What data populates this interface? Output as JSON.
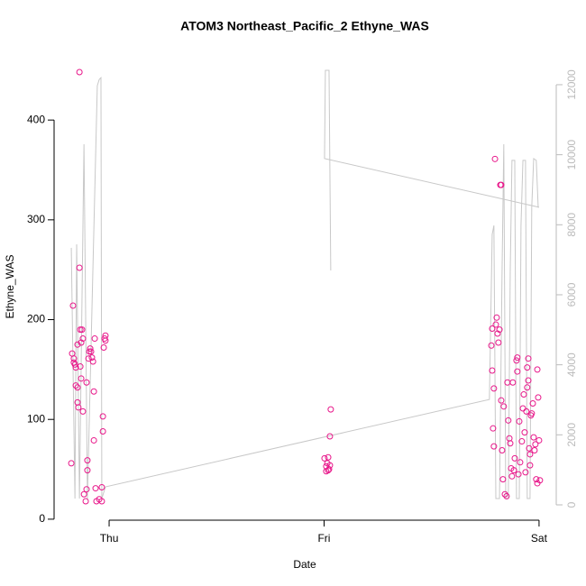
{
  "chart_data": {
    "type": "scatter",
    "title": "ATOM3 Northeast_Pacific_2 Ethyne_WAS",
    "xlabel": "Date",
    "ylabel": "Ethyne_WAS",
    "xlim": [
      -0.256,
      2.08
    ],
    "xticks": [
      {
        "value": 0,
        "label": "Thu"
      },
      {
        "value": 1,
        "label": "Fri"
      },
      {
        "value": 2,
        "label": "Sat"
      }
    ],
    "ylim": [
      -1,
      467
    ],
    "yticks": [
      0,
      100,
      200,
      300,
      400
    ],
    "y2lim": [
      -438,
      12900
    ],
    "y2ticks": [
      0,
      2000,
      4000,
      6000,
      8000,
      10000,
      12000
    ],
    "series": [
      {
        "type": "scatter",
        "color": "#e8178a",
        "x": [
          -0.176,
          -0.168,
          -0.172,
          -0.164,
          -0.159,
          -0.155,
          -0.147,
          -0.138,
          -0.138,
          -0.134,
          -0.126,
          -0.13,
          -0.122,
          -0.147,
          -0.147,
          -0.143,
          -0.134,
          -0.13,
          -0.122,
          -0.117,
          -0.109,
          -0.105,
          -0.101,
          -0.101,
          -0.105,
          -0.096,
          -0.092,
          -0.084,
          -0.08,
          -0.075,
          -0.071,
          -0.071,
          -0.067,
          -0.063,
          -0.059,
          -0.046,
          -0.034,
          -0.034,
          -0.029,
          -0.029,
          -0.025,
          -0.021,
          -0.017,
          -0.017,
          -0.155,
          -0.164,
          -0.088,
          1.002,
          1.015,
          1.019,
          1.01,
          1.027,
          1.019,
          1.027,
          1.031,
          1.023,
          1.01,
          1.782,
          1.778,
          1.782,
          1.79,
          1.79,
          1.786,
          1.795,
          1.799,
          1.803,
          1.807,
          1.811,
          1.816,
          1.82,
          1.824,
          1.824,
          1.828,
          1.832,
          1.836,
          1.841,
          1.849,
          1.853,
          1.857,
          1.862,
          1.866,
          1.87,
          1.874,
          1.878,
          1.883,
          1.887,
          1.895,
          1.899,
          1.899,
          1.904,
          1.908,
          1.912,
          1.92,
          1.925,
          1.929,
          1.933,
          1.937,
          1.941,
          1.945,
          1.95,
          1.95,
          1.954,
          1.958,
          1.962,
          1.966,
          1.971,
          1.975,
          1.979,
          1.983,
          1.987,
          1.992,
          1.996,
          2.0,
          2.004,
          1.992,
          1.958,
          1.945
        ],
        "values": [
          56,
          214,
          166,
          161,
          155,
          152,
          175,
          448,
          252,
          190,
          190,
          177,
          181,
          132,
          117,
          112,
          153,
          141,
          108,
          25,
          18,
          30,
          49,
          59,
          137,
          161,
          168,
          168,
          162,
          158,
          128,
          79,
          181,
          31,
          18,
          20,
          18,
          32,
          103,
          88,
          172,
          181,
          179,
          184,
          134,
          157,
          171,
          61,
          56,
          49,
          53,
          54,
          62,
          83,
          110,
          50,
          48,
          191,
          174,
          149,
          131,
          73,
          91,
          361,
          195,
          202,
          186,
          177,
          190,
          335,
          335,
          119,
          69,
          40,
          113,
          25,
          23,
          137,
          99,
          81,
          76,
          51,
          43,
          137,
          49,
          61,
          159,
          162,
          148,
          45,
          98,
          57,
          78,
          111,
          125,
          87,
          47,
          108,
          152,
          161,
          139,
          71,
          65,
          104,
          106,
          116,
          82,
          69,
          75,
          40,
          150,
          122,
          79,
          39,
          36,
          54,
          132
        ]
      },
      {
        "type": "line",
        "axis": "y2",
        "color": "#c8c8c8",
        "x": [
          -0.176,
          -0.159,
          -0.151,
          -0.138,
          -0.117,
          -0.101,
          -0.055,
          -0.046,
          -0.038,
          -0.034,
          -0.017,
          1.769,
          1.782,
          1.79,
          1.799,
          1.816,
          1.828,
          1.836,
          1.845,
          1.857,
          1.866,
          1.874,
          1.887,
          1.895,
          1.908,
          1.916,
          1.925,
          1.937,
          1.945,
          1.958,
          1.966,
          1.975,
          1.987,
          1.996,
          2.0,
          1.002,
          1.006,
          1.023,
          1.031
        ],
        "values": [
          7340,
          180,
          7440,
          180,
          10300,
          180,
          11970,
          12150,
          12200,
          180,
          515,
          3010,
          7725,
          7980,
          180,
          180,
          6695,
          10300,
          180,
          180,
          6695,
          9840,
          9840,
          180,
          180,
          7980,
          9840,
          9840,
          180,
          180,
          8500,
          9890,
          9840,
          8500,
          8500,
          9890,
          12410,
          12410,
          6695
        ]
      }
    ]
  }
}
